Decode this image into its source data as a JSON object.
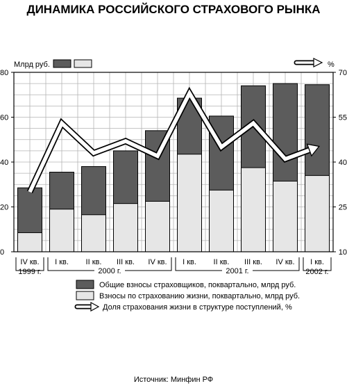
{
  "chart_data": {
    "type": "bar",
    "title": "ДИНАМИКА РОССИЙСКОГО СТРАХОВОГО РЫНКА",
    "left_axis_unit": "Млрд руб.",
    "right_axis_unit": "%",
    "ylim_left": [
      0,
      80
    ],
    "yticks_left": [
      "0",
      "20",
      "40",
      "60",
      "80"
    ],
    "ylim_right": [
      10,
      70
    ],
    "yticks_right": [
      "10",
      "25",
      "40",
      "55",
      "70"
    ],
    "grid": true,
    "legend_position": "bottom",
    "categories": [
      "IV кв.",
      "I кв.",
      "II кв.",
      "III кв.",
      "IV кв.",
      "I кв.",
      "II кв.",
      "III кв.",
      "IV кв.",
      "I кв."
    ],
    "year_groups": [
      {
        "label": "1999 г.",
        "from": 0,
        "to": 0
      },
      {
        "label": "2000 г.",
        "from": 1,
        "to": 4
      },
      {
        "label": "2001 г.",
        "from": 5,
        "to": 8
      },
      {
        "label": "2002 г.",
        "from": 9,
        "to": 9
      }
    ],
    "series": [
      {
        "name": "Общие взносы страховщиков, поквартально, млрд руб.",
        "kind": "bar",
        "color": "#5c5c5c",
        "values": [
          28.5,
          35.5,
          38,
          45,
          54,
          68.5,
          60.5,
          74,
          75,
          74.5
        ]
      },
      {
        "name": "Взносы по страхованию жизни, поквартально, млрд руб.",
        "kind": "bar",
        "color": "#e6e6e6",
        "values": [
          8.5,
          19,
          16.5,
          21.5,
          22.5,
          43.5,
          27.5,
          37.5,
          31.5,
          34
        ]
      },
      {
        "name": "Доля страхования жизни в структуре поступлений, %",
        "kind": "line",
        "axis": "right",
        "values": [
          30,
          53,
          43,
          47,
          42,
          63,
          45,
          53,
          41,
          45
        ]
      }
    ]
  },
  "source": "Источник: Минфин РФ"
}
